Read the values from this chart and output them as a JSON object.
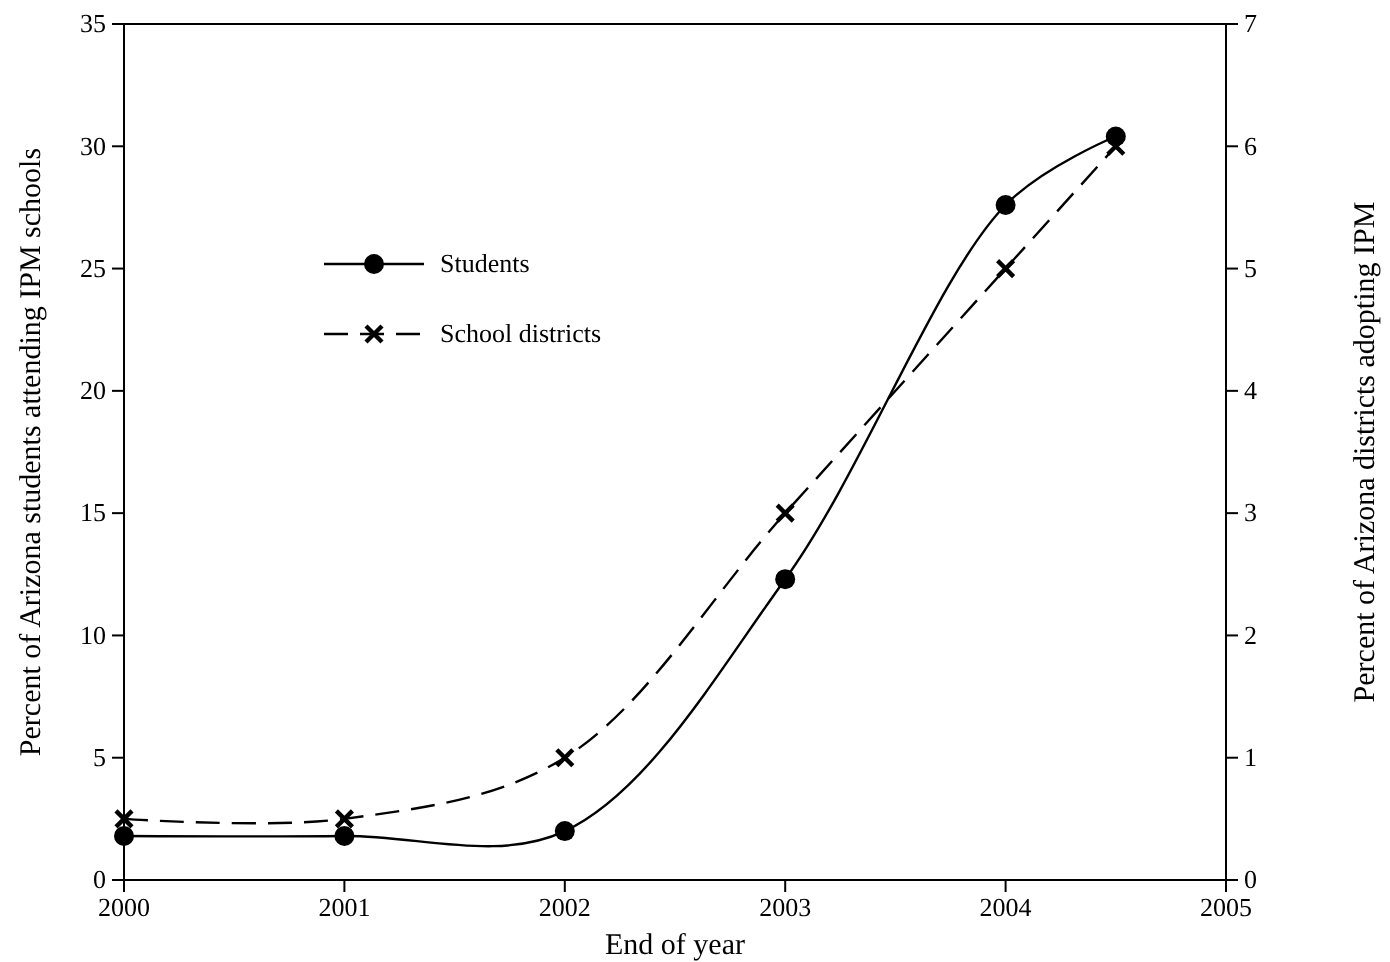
{
  "chart_data": {
    "type": "line",
    "xlabel": "End of year",
    "ylabel": "Percent of Arizona students attending IPM schools",
    "y2label": "Percent of Arizona districts adopting IPM",
    "x": [
      2000,
      2001,
      2002,
      2003,
      2004,
      2004.5
    ],
    "xlim": [
      2000,
      2005
    ],
    "xticks": [
      2000,
      2001,
      2002,
      2003,
      2004,
      2005
    ],
    "ylim": [
      0,
      35
    ],
    "yticks": [
      0,
      5,
      10,
      15,
      20,
      25,
      30,
      35
    ],
    "y2lim": [
      0,
      7
    ],
    "y2ticks": [
      0,
      1,
      2,
      3,
      4,
      5,
      6,
      7
    ],
    "legend": "top left",
    "grid": false,
    "series": [
      {
        "name": "Students",
        "color": "#000000",
        "marker": "circle",
        "line_style": "solid",
        "values": [
          1.8,
          1.8,
          2.0,
          12.3,
          27.6,
          30.4
        ]
      },
      {
        "name": "School districts",
        "color": "#000000",
        "marker": "cross",
        "line_style": "dashed",
        "axis": "y2",
        "values": [
          0.5,
          0.5,
          1.0,
          3.0,
          5.0,
          6.0
        ]
      }
    ]
  }
}
